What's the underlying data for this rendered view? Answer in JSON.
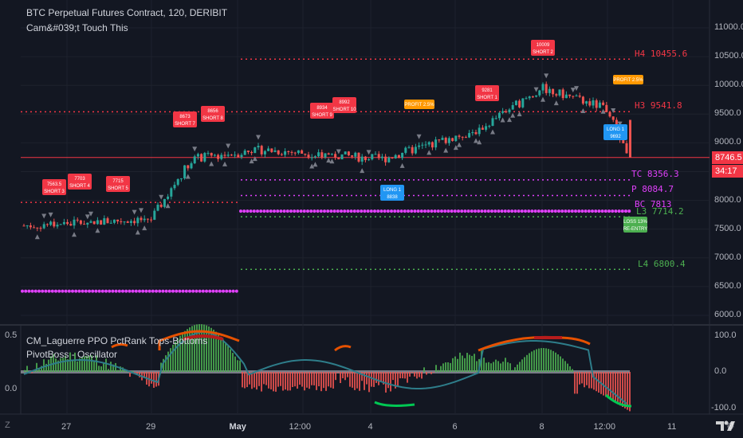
{
  "chart": {
    "title": "BTC Perpetual Futures Contract, 120, DERIBIT",
    "subtitle": "Cam&#039;t Touch This",
    "indicator1": "CM_Laguerre PPO PctRank Tops-Bottoms",
    "indicator2": "PivotBoss - Oscillator"
  },
  "price_axis": [
    "11000.0",
    "10500.0",
    "10000.0",
    "9500.0",
    "9000.0",
    "8500.0",
    "8000.0",
    "7500.0",
    "7000.0",
    "6500.0",
    "6000.0"
  ],
  "osc_axis": [
    "100.0",
    "0.0",
    "-100.0"
  ],
  "left_axis": [
    "0.5",
    "0.0"
  ],
  "time_axis": [
    "27",
    "29",
    "May",
    "12:00",
    "4",
    "6",
    "8",
    "12:00",
    "11"
  ],
  "current_price": "8746.5",
  "countdown": "34:17",
  "levels": {
    "h4": "H4 10455.6",
    "h3": "H3 9541.8",
    "tc": "TC 8356.3",
    "p": "P 8084.7",
    "bc": "BC 7813",
    "l3": "L3 7714.2",
    "l4": "L4 6800.4"
  },
  "signals": [
    {
      "text": "7563.5\nSHORT 3",
      "color": "#f23645"
    },
    {
      "text": "7703\nSHORT 4",
      "color": "#f23645"
    },
    {
      "text": "7715\nSHORT 5",
      "color": "#f23645"
    },
    {
      "text": "8673\nSHORT 7",
      "color": "#f23645"
    },
    {
      "text": "8656\nSHORT 8",
      "color": "#f23645"
    },
    {
      "text": "8934\nSHORT 9",
      "color": "#f23645"
    },
    {
      "text": "8992\nSHORT 10",
      "color": "#f23645"
    },
    {
      "text": "PROFIT 2.5%",
      "color": "#ff9800"
    },
    {
      "text": "9281\nSHORT 1",
      "color": "#f23645"
    },
    {
      "text": "10009\nSHORT 2",
      "color": "#f23645"
    },
    {
      "text": "PROFIT 2.5%",
      "color": "#ff9800"
    },
    {
      "text": "LONG 1\n9692",
      "color": "#2196f3"
    },
    {
      "text": "LONG 1\n8838",
      "color": "#2196f3"
    },
    {
      "text": "LOSS 13%\nRE-ENTRY",
      "color": "#4caf50"
    }
  ],
  "chart_data": {
    "type": "line",
    "title": "BTC Perpetual Futures Contract, 120, DERIBIT",
    "xlabel": "",
    "ylabel": "",
    "x": [
      "27",
      "29",
      "May",
      "12:00",
      "4",
      "6",
      "8",
      "12:00",
      "11"
    ],
    "series": [
      {
        "name": "",
        "values": [
          7560,
          7680,
          8720,
          8880,
          8720,
          9230,
          9950,
          9600,
          8746.5
        ]
      }
    ],
    "ylim": [
      5800,
      11200
    ]
  }
}
